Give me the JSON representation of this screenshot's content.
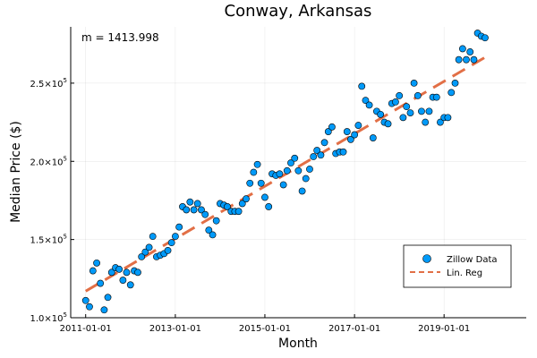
{
  "chart_data": {
    "type": "scatter",
    "title": "Conway, Arkansas",
    "xlabel": "Month",
    "ylabel": "Median Price ($)",
    "annotation": "m = 1413.998",
    "x_ticks": [
      "2011-01-01",
      "2013-01-01",
      "2015-01-01",
      "2017-01-01",
      "2019-01-01"
    ],
    "y_ticks": [
      {
        "value": 100000,
        "base": "1.0×10",
        "exp": "5"
      },
      {
        "value": 150000,
        "base": "1.5×10",
        "exp": "5"
      },
      {
        "value": 200000,
        "base": "2.0×10",
        "exp": "5"
      },
      {
        "value": 250000,
        "base": "2.5×10",
        "exp": "5"
      }
    ],
    "xlim": [
      "2010-09-01",
      "2020-11-01"
    ],
    "ylim": [
      100000,
      286000
    ],
    "grid": true,
    "legend_position": "bottom-right",
    "colors": {
      "scatter": "#009af9",
      "regression": "#e26f46"
    },
    "series": [
      {
        "name": "Zillow Data",
        "kind": "scatter",
        "x": [
          "2011-01",
          "2011-02",
          "2011-03",
          "2011-04",
          "2011-05",
          "2011-06",
          "2011-07",
          "2011-08",
          "2011-09",
          "2011-10",
          "2011-11",
          "2011-12",
          "2012-01",
          "2012-02",
          "2012-03",
          "2012-04",
          "2012-05",
          "2012-06",
          "2012-07",
          "2012-08",
          "2012-09",
          "2012-10",
          "2012-11",
          "2012-12",
          "2013-01",
          "2013-02",
          "2013-03",
          "2013-04",
          "2013-05",
          "2013-06",
          "2013-07",
          "2013-08",
          "2013-09",
          "2013-10",
          "2013-11",
          "2013-12",
          "2014-01",
          "2014-02",
          "2014-03",
          "2014-04",
          "2014-05",
          "2014-06",
          "2014-07",
          "2014-08",
          "2014-09",
          "2014-10",
          "2014-11",
          "2014-12",
          "2015-01",
          "2015-02",
          "2015-03",
          "2015-04",
          "2015-05",
          "2015-06",
          "2015-07",
          "2015-08",
          "2015-09",
          "2015-10",
          "2015-11",
          "2015-12",
          "2016-01",
          "2016-02",
          "2016-03",
          "2016-04",
          "2016-05",
          "2016-06",
          "2016-07",
          "2016-08",
          "2016-09",
          "2016-10",
          "2016-11",
          "2016-12",
          "2017-01",
          "2017-02",
          "2017-03",
          "2017-04",
          "2017-05",
          "2017-06",
          "2017-07",
          "2017-08",
          "2017-09",
          "2017-10",
          "2017-11",
          "2017-12",
          "2018-01",
          "2018-02",
          "2018-03",
          "2018-04",
          "2018-05",
          "2018-06",
          "2018-07",
          "2018-08",
          "2018-09",
          "2018-10",
          "2018-11",
          "2018-12",
          "2019-01",
          "2019-02",
          "2019-03",
          "2019-04",
          "2019-05",
          "2019-06",
          "2019-07",
          "2019-08",
          "2019-09",
          "2019-10",
          "2019-11",
          "2019-12"
        ],
        "y": [
          111000,
          107000,
          130000,
          135000,
          122000,
          105000,
          113000,
          129000,
          132000,
          131000,
          124000,
          129000,
          121000,
          130000,
          129000,
          139000,
          142000,
          145000,
          152000,
          139000,
          140000,
          141000,
          143000,
          148000,
          152000,
          158000,
          171000,
          169000,
          174000,
          169000,
          173000,
          169000,
          166000,
          156000,
          153000,
          162000,
          173000,
          172000,
          171000,
          168000,
          168000,
          168000,
          173000,
          176000,
          186000,
          193000,
          198000,
          186000,
          177000,
          171000,
          192000,
          191000,
          192000,
          185000,
          194000,
          199000,
          202000,
          194000,
          181000,
          189000,
          195000,
          203000,
          207000,
          204000,
          212000,
          219000,
          222000,
          205000,
          206000,
          206000,
          219000,
          214000,
          217000,
          223000,
          248000,
          239000,
          236000,
          215000,
          232000,
          230000,
          225000,
          224000,
          237000,
          238000,
          242000,
          228000,
          235000,
          231000,
          250000,
          242000,
          232000,
          225000,
          232000,
          241000,
          241000,
          225000,
          228000,
          228000,
          244000,
          250000,
          265000,
          272000,
          265000,
          270000,
          265000,
          282000,
          280000,
          279000
        ]
      },
      {
        "name": "Lin. Reg",
        "kind": "line",
        "style": "dashed",
        "x": [
          "2011-01",
          "2019-12"
        ],
        "y": [
          117000,
          266500
        ]
      }
    ]
  }
}
